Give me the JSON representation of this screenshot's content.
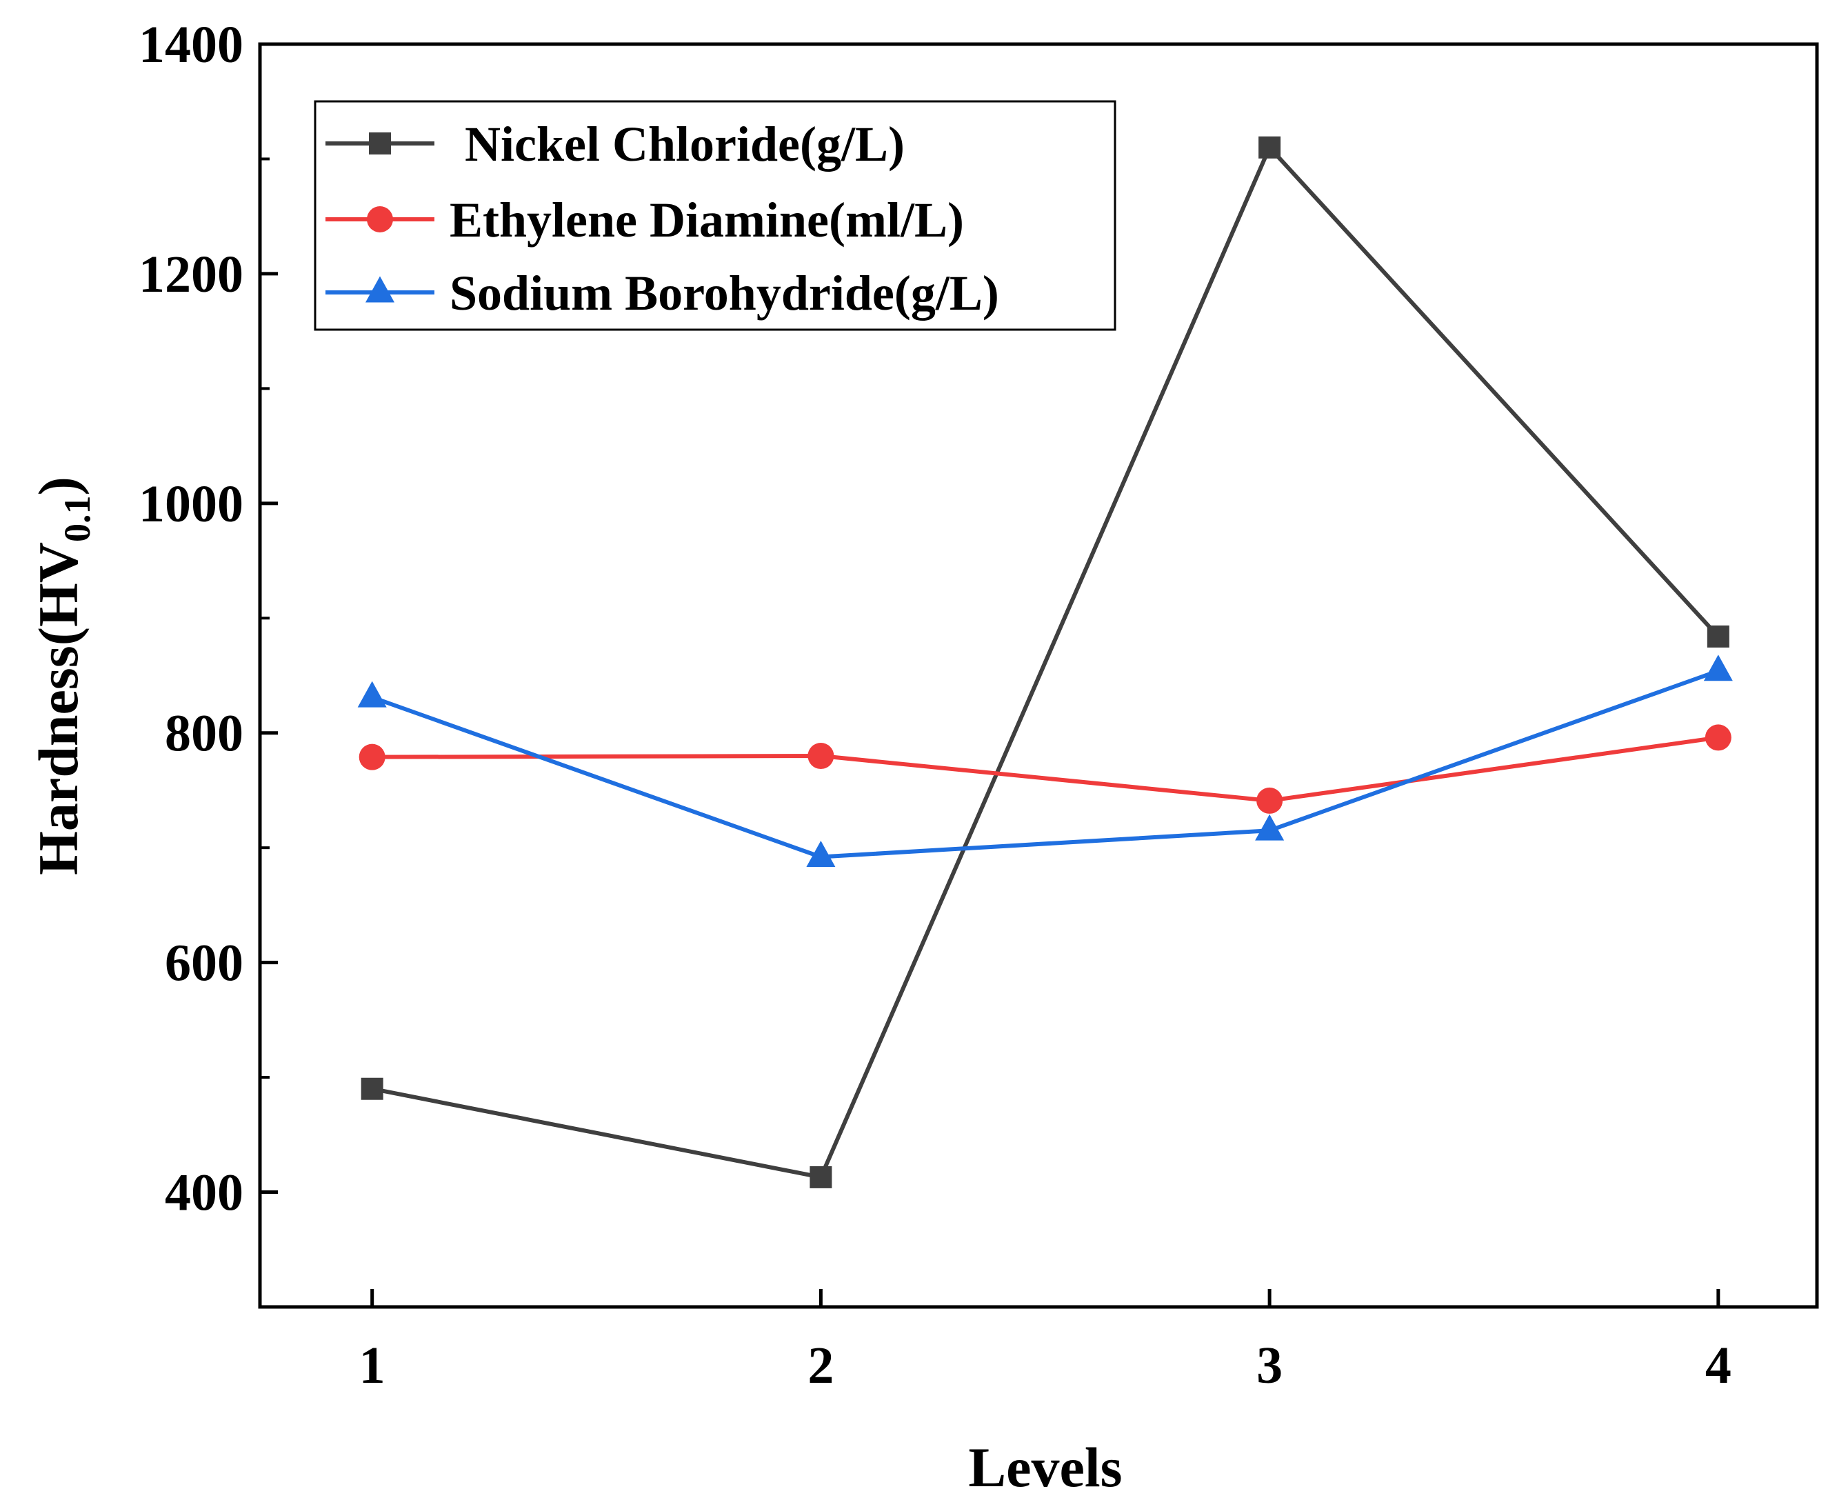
{
  "chart_data": {
    "type": "line",
    "title": "",
    "xlabel": "Levels",
    "ylabel": {
      "main": "Hardness(HV",
      "sub": "0.1",
      "close": ")"
    },
    "categories": [
      "1",
      "2",
      "3",
      "4"
    ],
    "x": [
      1,
      2,
      3,
      4
    ],
    "xlim": [
      0.75,
      4.22
    ],
    "ylim": [
      300,
      1400
    ],
    "y_major_ticks": [
      400,
      600,
      800,
      1000,
      1200,
      1400
    ],
    "y_minor_ticks": [
      500,
      700,
      900,
      1100,
      1300
    ],
    "legend_position": "top-left",
    "series": [
      {
        "name": "Nickel Chloride(g/L)",
        "color": "#3f3f3f",
        "marker": "square",
        "values": [
          490,
          413,
          1310,
          884
        ]
      },
      {
        "name": "Ethylene Diamine(ml/L)",
        "color": "#ef3b3b",
        "marker": "circle",
        "values": [
          779,
          780,
          741,
          796
        ]
      },
      {
        "name": "Sodium Borohydride(g/L)",
        "color": "#1f6fe0",
        "marker": "triangle",
        "values": [
          831,
          692,
          715,
          854
        ]
      }
    ]
  }
}
